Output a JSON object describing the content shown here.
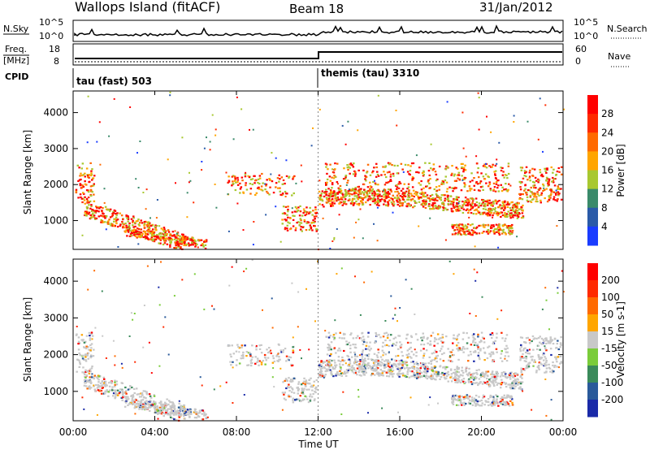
{
  "header": {
    "station": "Wallops Island (fitACF)",
    "beam": "Beam 18",
    "date": "31/Jan/2012"
  },
  "top_panel": {
    "nsky_label": "N.Sky",
    "nsky_ticks": [
      "10^5",
      "10^0"
    ],
    "right_ticks": [
      "10^5",
      "10^0"
    ],
    "nsearch_label": "N.Search",
    "freq_label": "Freq.",
    "freq_unit": "[MHz]",
    "freq_ticks": [
      "18",
      "8"
    ],
    "nave_ticks": [
      "60",
      "0"
    ],
    "nave_label": "Nave",
    "cpid_label": "CPID",
    "cpid_left": "tau (fast) 503",
    "cpid_right": "themis (tau) 3310"
  },
  "chart_data": [
    {
      "type": "heatmap",
      "xlabel": "",
      "ylabel": "Slant Range [km]",
      "ylim": [
        200,
        4600
      ],
      "yticks": [
        "1000",
        "2000",
        "3000",
        "4000"
      ],
      "colorbar": {
        "label": "Power [dB]",
        "ticks": [
          "4",
          "8",
          "12",
          "16",
          "20",
          "24",
          "28"
        ],
        "colors": [
          "#1a3cff",
          "#2a5aa8",
          "#3a8a6a",
          "#a8c830",
          "#ffa500",
          "#ff6a00",
          "#ff2a00",
          "#ff0000"
        ]
      }
    },
    {
      "type": "heatmap",
      "xlabel": "Time UT",
      "ylabel": "Slant Range [km]",
      "ylim": [
        200,
        4600
      ],
      "xticks": [
        "00:00",
        "04:00",
        "08:00",
        "12:00",
        "16:00",
        "20:00",
        "00:00"
      ],
      "yticks": [
        "1000",
        "2000",
        "3000",
        "4000"
      ],
      "colorbar": {
        "label": "Velocity [m s-1]",
        "ticks": [
          "200",
          "100",
          "50",
          "15",
          "-15",
          "-50",
          "-100",
          "-200"
        ],
        "colors": [
          "#1a2aa8",
          "#2a5a9a",
          "#3a8a5a",
          "#7acc3a",
          "#c8c8c8",
          "#ffa500",
          "#ff6a00",
          "#ff2a00",
          "#ff0000"
        ]
      }
    }
  ]
}
